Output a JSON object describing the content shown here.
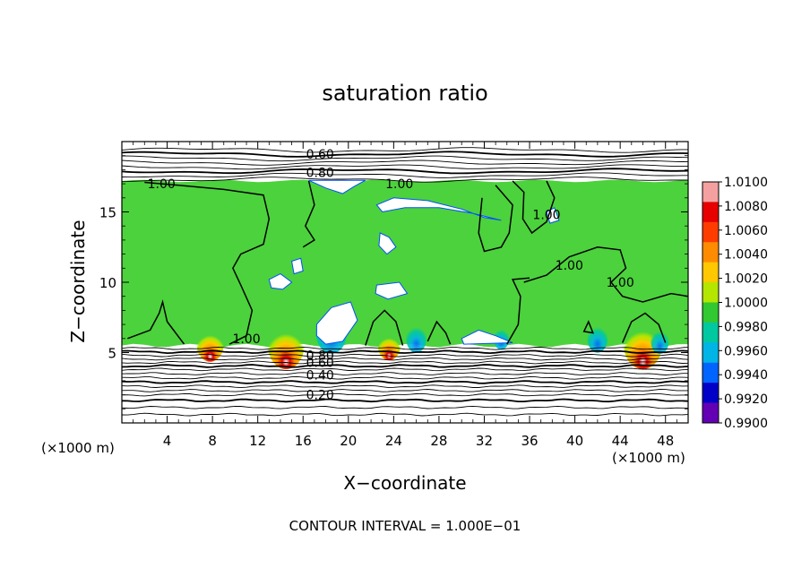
{
  "chart_data": {
    "type": "heatmap",
    "title": "saturation ratio",
    "xlabel": "X−coordinate",
    "ylabel": "Z−coordinate",
    "x_unit": "(×1000 m)",
    "y_unit": "(×1000 m)",
    "xlim": [
      0,
      50
    ],
    "ylim": [
      0,
      20
    ],
    "xticks": [
      4,
      8,
      12,
      16,
      20,
      24,
      28,
      32,
      36,
      40,
      44,
      48
    ],
    "yticks": [
      5,
      10,
      15
    ],
    "footer": "CONTOUR INTERVAL = 1.000E−01",
    "colorbar": {
      "labels": [
        "1.0100",
        "1.0080",
        "1.0060",
        "1.0040",
        "1.0020",
        "1.0000",
        "0.9980",
        "0.9960",
        "0.9940",
        "0.9920",
        "0.9900"
      ],
      "colors": [
        "#f4a0a0",
        "#e60000",
        "#ff3c00",
        "#ff8c00",
        "#ffc800",
        "#b4e600",
        "#32c832",
        "#00c8a0",
        "#00b4e6",
        "#0064ff",
        "#0000c8",
        "#6400b4"
      ]
    },
    "field": {
      "base_color": "#4cd23c",
      "inner_cloud_z": [
        5.5,
        17.2
      ]
    },
    "contour_labels": [
      {
        "text": "0.60",
        "x": 17.5,
        "z": 19.1
      },
      {
        "text": "0.80",
        "x": 17.5,
        "z": 17.8
      },
      {
        "text": "1.00",
        "x": 3.5,
        "z": 17.0
      },
      {
        "text": "1.00",
        "x": 24.5,
        "z": 17.0
      },
      {
        "text": "1.00",
        "x": 37.5,
        "z": 14.8
      },
      {
        "text": "1.00",
        "x": 39.5,
        "z": 11.2
      },
      {
        "text": "1.00",
        "x": 44.0,
        "z": 10.0
      },
      {
        "text": "1.00",
        "x": 11.0,
        "z": 6.0
      },
      {
        "text": "0.80",
        "x": 17.5,
        "z": 4.8
      },
      {
        "text": "0.60",
        "x": 17.5,
        "z": 4.3
      },
      {
        "text": "0.40",
        "x": 17.5,
        "z": 3.4
      },
      {
        "text": "0.20",
        "x": 17.5,
        "z": 2.0
      }
    ],
    "upper_contours_z": [
      19.4,
      19.1,
      18.8,
      18.5,
      18.2,
      17.9,
      17.6,
      17.3
    ],
    "lower_contours_z": [
      5.3,
      5.05,
      4.8,
      4.55,
      4.3,
      4.05,
      3.8,
      3.5,
      3.2,
      2.9,
      2.6,
      2.3,
      2.0,
      1.6,
      1.1,
      0.6
    ],
    "hot_spots": [
      {
        "x": 7.8,
        "z": 5.6,
        "r": 1.2
      },
      {
        "x": 14.5,
        "z": 5.5,
        "r": 1.6
      },
      {
        "x": 23.6,
        "z": 5.5,
        "r": 1.0
      },
      {
        "x": 46.0,
        "z": 5.6,
        "r": 1.7
      }
    ],
    "cold_spots": [
      {
        "x": 18.5,
        "z": 6.5,
        "r": 1.4
      },
      {
        "x": 26.0,
        "z": 6.0,
        "r": 0.9
      },
      {
        "x": 42.0,
        "z": 6.0,
        "r": 0.9
      },
      {
        "x": 47.5,
        "z": 5.8,
        "r": 0.8
      },
      {
        "x": 33.5,
        "z": 6.0,
        "r": 0.7
      }
    ]
  }
}
